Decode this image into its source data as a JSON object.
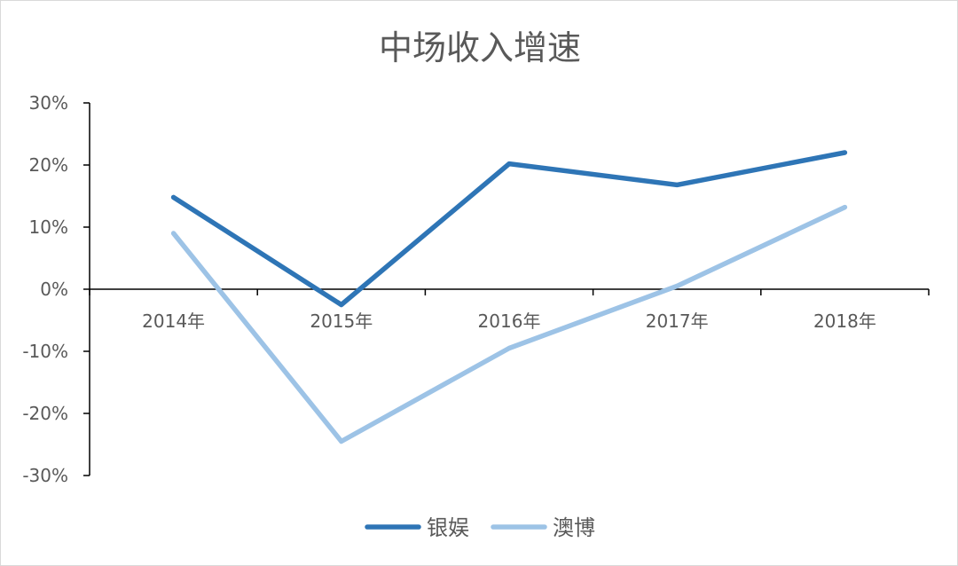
{
  "chart_data": {
    "type": "line",
    "title": "中场收入增速",
    "categories": [
      "2014年",
      "2015年",
      "2016年",
      "2017年",
      "2018年"
    ],
    "series": [
      {
        "name": "银娱",
        "values": [
          0.148,
          -0.025,
          0.202,
          0.168,
          0.22
        ],
        "color": "#2e75b6"
      },
      {
        "name": "澳博",
        "values": [
          0.09,
          -0.245,
          -0.095,
          0.005,
          0.132
        ],
        "color": "#9dc3e6"
      }
    ],
    "ylim": [
      -0.3,
      0.3
    ],
    "yticks": [
      0.3,
      0.2,
      0.1,
      0,
      -0.1,
      -0.2,
      -0.3
    ],
    "ytick_labels": [
      "30%",
      "20%",
      "10%",
      "0%",
      "-10%",
      "-20%",
      "-30%"
    ],
    "grid": false,
    "legend_position": "bottom"
  }
}
